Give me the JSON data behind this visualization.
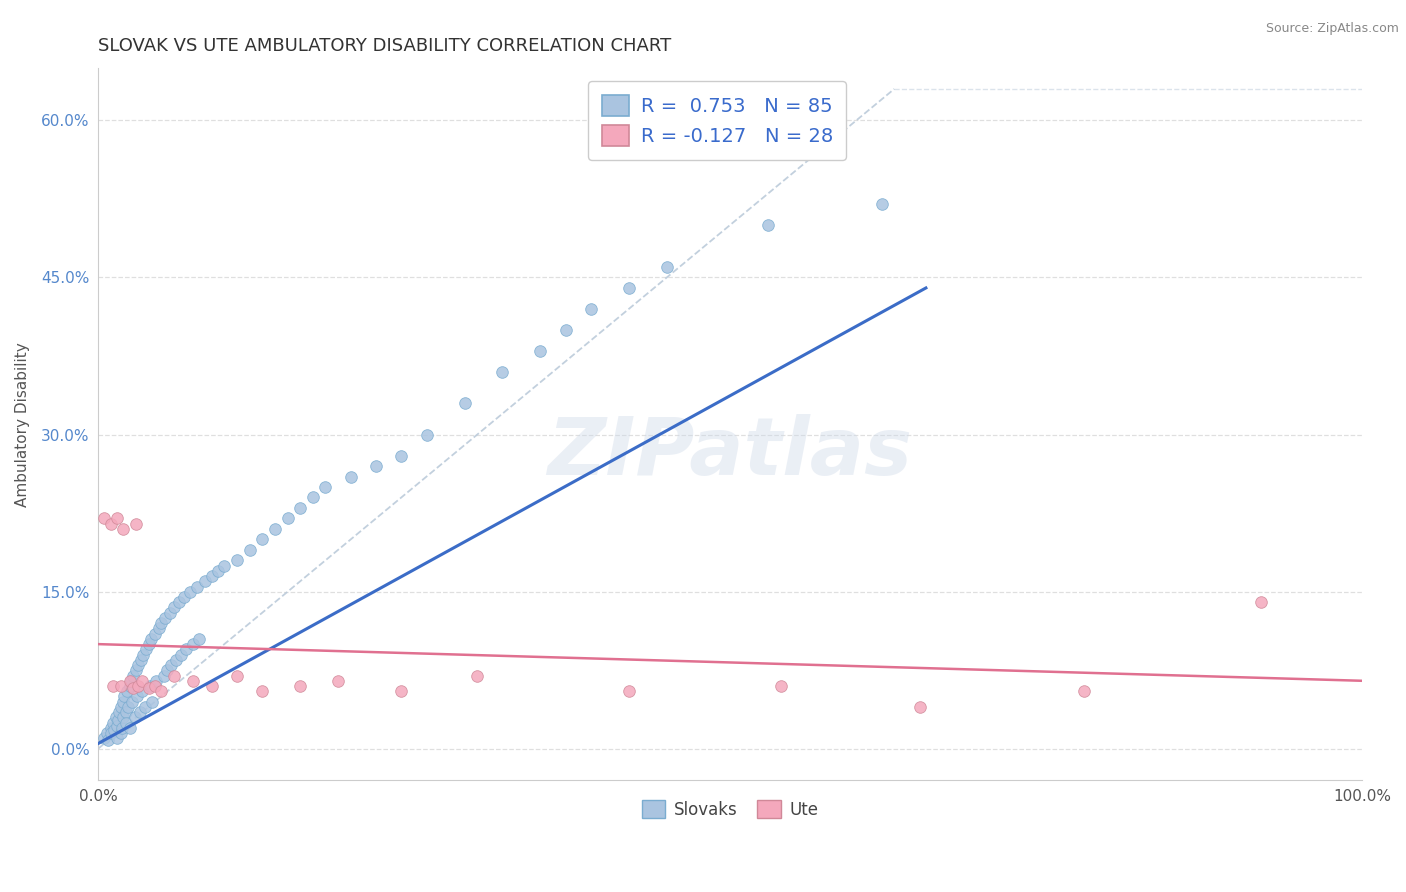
{
  "title": "SLOVAK VS UTE AMBULATORY DISABILITY CORRELATION CHART",
  "source": "Source: ZipAtlas.com",
  "ylabel": "Ambulatory Disability",
  "xlim": [
    0.0,
    1.0
  ],
  "ylim": [
    -0.03,
    0.65
  ],
  "xtick_positions": [
    0.0,
    1.0
  ],
  "xtick_labels": [
    "0.0%",
    "100.0%"
  ],
  "ytick_vals": [
    0.0,
    0.15,
    0.3,
    0.45,
    0.6
  ],
  "ytick_labels": [
    "0.0%",
    "15.0%",
    "30.0%",
    "45.0%",
    "60.0%"
  ],
  "legend_slovak_label": "R =  0.753   N = 85",
  "legend_ute_label": "R = -0.127   N = 28",
  "legend_bottom_slovak": "Slovaks",
  "legend_bottom_ute": "Ute",
  "slovak_color": "#aac4e0",
  "ute_color": "#f4a8bc",
  "slovak_line_color": "#3b6cc7",
  "ute_line_color": "#e07090",
  "diagonal_color": "#b8c8d8",
  "background_color": "#ffffff",
  "watermark": "ZIPatlas",
  "title_fontsize": 13,
  "slovak_scatter_x": [
    0.005,
    0.007,
    0.008,
    0.01,
    0.01,
    0.012,
    0.013,
    0.014,
    0.015,
    0.015,
    0.016,
    0.017,
    0.018,
    0.018,
    0.019,
    0.02,
    0.02,
    0.021,
    0.022,
    0.022,
    0.023,
    0.024,
    0.025,
    0.025,
    0.026,
    0.027,
    0.028,
    0.029,
    0.03,
    0.031,
    0.032,
    0.033,
    0.034,
    0.035,
    0.036,
    0.037,
    0.038,
    0.04,
    0.041,
    0.042,
    0.043,
    0.045,
    0.046,
    0.048,
    0.05,
    0.052,
    0.053,
    0.055,
    0.057,
    0.058,
    0.06,
    0.062,
    0.064,
    0.066,
    0.068,
    0.07,
    0.073,
    0.075,
    0.078,
    0.08,
    0.085,
    0.09,
    0.095,
    0.1,
    0.11,
    0.12,
    0.13,
    0.14,
    0.15,
    0.16,
    0.17,
    0.18,
    0.2,
    0.22,
    0.24,
    0.26,
    0.29,
    0.32,
    0.35,
    0.37,
    0.39,
    0.42,
    0.45,
    0.53,
    0.62
  ],
  "slovak_scatter_y": [
    0.01,
    0.015,
    0.008,
    0.02,
    0.015,
    0.025,
    0.018,
    0.03,
    0.022,
    0.01,
    0.028,
    0.035,
    0.015,
    0.04,
    0.02,
    0.045,
    0.03,
    0.05,
    0.035,
    0.025,
    0.055,
    0.04,
    0.06,
    0.02,
    0.065,
    0.045,
    0.07,
    0.03,
    0.075,
    0.05,
    0.08,
    0.035,
    0.085,
    0.055,
    0.09,
    0.04,
    0.095,
    0.1,
    0.06,
    0.105,
    0.045,
    0.11,
    0.065,
    0.115,
    0.12,
    0.07,
    0.125,
    0.075,
    0.13,
    0.08,
    0.135,
    0.085,
    0.14,
    0.09,
    0.145,
    0.095,
    0.15,
    0.1,
    0.155,
    0.105,
    0.16,
    0.165,
    0.17,
    0.175,
    0.18,
    0.19,
    0.2,
    0.21,
    0.22,
    0.23,
    0.24,
    0.25,
    0.26,
    0.27,
    0.28,
    0.3,
    0.33,
    0.36,
    0.38,
    0.4,
    0.42,
    0.44,
    0.46,
    0.5,
    0.52
  ],
  "ute_scatter_x": [
    0.005,
    0.01,
    0.012,
    0.015,
    0.018,
    0.02,
    0.025,
    0.028,
    0.03,
    0.032,
    0.035,
    0.04,
    0.045,
    0.05,
    0.06,
    0.075,
    0.09,
    0.11,
    0.13,
    0.16,
    0.19,
    0.24,
    0.3,
    0.42,
    0.54,
    0.65,
    0.78,
    0.92
  ],
  "ute_scatter_y": [
    0.22,
    0.215,
    0.06,
    0.22,
    0.06,
    0.21,
    0.065,
    0.058,
    0.215,
    0.06,
    0.065,
    0.058,
    0.06,
    0.055,
    0.07,
    0.065,
    0.06,
    0.07,
    0.055,
    0.06,
    0.065,
    0.055,
    0.07,
    0.055,
    0.06,
    0.04,
    0.055,
    0.14
  ],
  "slovak_line_x": [
    0.0,
    0.655
  ],
  "slovak_line_y": [
    0.005,
    0.44
  ],
  "ute_line_x": [
    0.0,
    1.0
  ],
  "ute_line_y": [
    0.1,
    0.065
  ]
}
